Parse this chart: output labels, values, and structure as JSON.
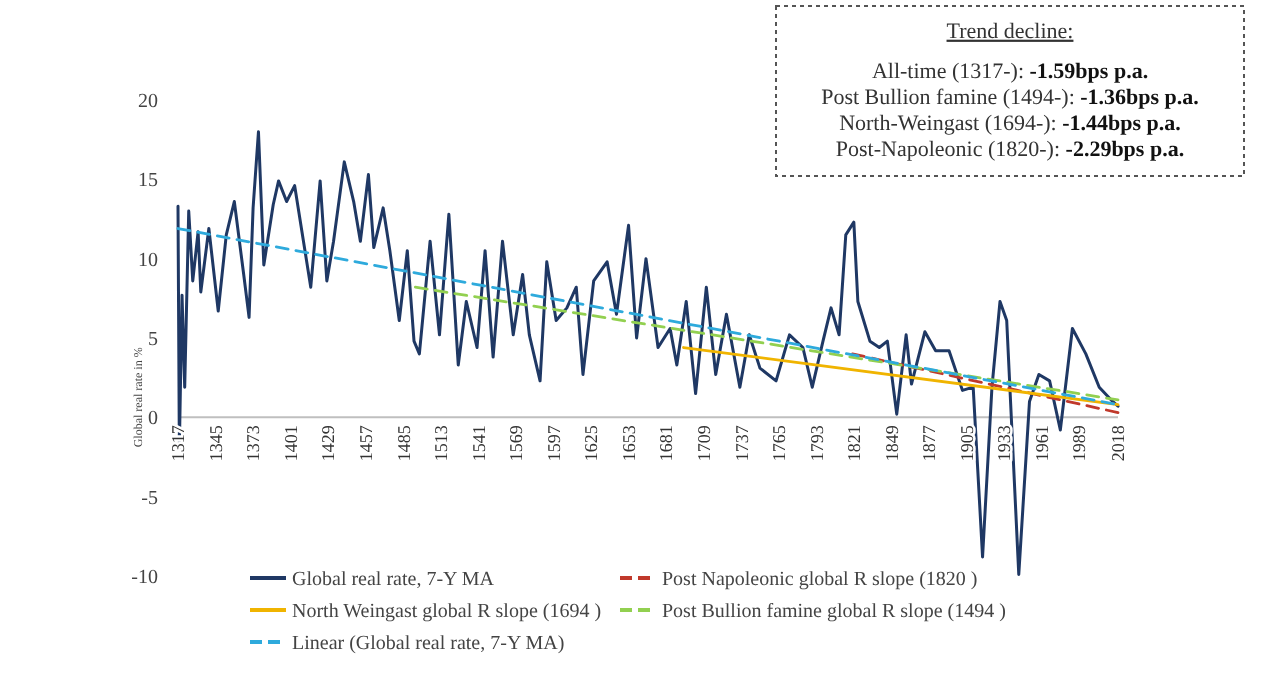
{
  "chart_data": {
    "type": "line",
    "ylabel": "Global real rate in %",
    "xlim": [
      1317,
      2018
    ],
    "xticks": [
      1317,
      1345,
      1373,
      1401,
      1429,
      1457,
      1485,
      1513,
      1541,
      1569,
      1597,
      1625,
      1653,
      1681,
      1709,
      1737,
      1765,
      1793,
      1821,
      1849,
      1877,
      1905,
      1933,
      1961,
      1989,
      2018
    ],
    "ylim": [
      -10,
      20
    ],
    "yticks": [
      -10,
      -5,
      0,
      5,
      10,
      15,
      20
    ],
    "grid": false,
    "legend": "bottom",
    "marker": "none",
    "annotations": [
      "Trend decline:",
      "All-time (1317-): -1.59bps p.a.",
      "Post Bullion famine (1494-): -1.36bps p.a.",
      "North-Weingast (1694-): -1.44bps p.a.",
      "Post-Napoleonic (1820-): -2.29bps p.a."
    ],
    "series": [
      {
        "name": "Global real rate, 7-Y MA",
        "color": "#1f3864",
        "line_style": "solid",
        "x": [
          1317,
          1318,
          1320,
          1322,
          1325,
          1328,
          1332,
          1334,
          1340,
          1347,
          1353,
          1359,
          1366,
          1370,
          1373,
          1377,
          1381,
          1388,
          1392,
          1398,
          1404,
          1416,
          1423,
          1428,
          1433,
          1441,
          1448,
          1453,
          1459,
          1463,
          1470,
          1475,
          1482,
          1488,
          1493,
          1497,
          1505,
          1512,
          1519,
          1526,
          1532,
          1540,
          1546,
          1552,
          1559,
          1567,
          1574,
          1579,
          1587,
          1592,
          1599,
          1607,
          1614,
          1619,
          1627,
          1637,
          1644,
          1653,
          1659,
          1666,
          1675,
          1684,
          1689,
          1696,
          1703,
          1711,
          1718,
          1726,
          1736,
          1743,
          1751,
          1763,
          1773,
          1783,
          1790,
          1798,
          1804,
          1810,
          1815,
          1821,
          1824,
          1833,
          1840,
          1846,
          1853,
          1860,
          1864,
          1874,
          1882,
          1892,
          1902,
          1910,
          1917,
          1924,
          1930,
          1935,
          1944,
          1952,
          1959,
          1967,
          1975,
          1984,
          1994,
          2004,
          2014,
          2018
        ],
        "values": [
          13.3,
          -2,
          7.7,
          1.9,
          13,
          8.6,
          11.7,
          7.9,
          11.9,
          6.7,
          11.5,
          13.6,
          9,
          6.3,
          13.2,
          18,
          9.6,
          13.4,
          14.9,
          13.6,
          14.6,
          8.2,
          14.9,
          8.6,
          11.1,
          16.1,
          13.6,
          11.1,
          15.3,
          10.7,
          13.2,
          10.5,
          6.1,
          10.5,
          4.8,
          4,
          11.1,
          5.2,
          12.8,
          3.3,
          7.3,
          4.4,
          10.5,
          3.8,
          11.1,
          5.2,
          9,
          5.2,
          2.3,
          9.8,
          6.1,
          6.9,
          8.2,
          2.7,
          8.6,
          9.8,
          6.5,
          12.1,
          5,
          10,
          4.4,
          5.6,
          3.3,
          7.3,
          1.5,
          8.2,
          2.7,
          6.5,
          1.9,
          5.2,
          3.1,
          2.3,
          5.2,
          4.4,
          1.9,
          4.8,
          6.9,
          5.2,
          11.5,
          12.3,
          7.3,
          4.8,
          4.4,
          4.8,
          0.2,
          5.2,
          2.1,
          5.4,
          4.2,
          4.2,
          1.7,
          1.9,
          -8.8,
          1.9,
          7.3,
          6.1,
          -9.9,
          1,
          2.7,
          2.3,
          -0.8,
          5.6,
          4,
          1.9,
          1,
          0.7
        ]
      },
      {
        "name": "Post Napoleonic global R slope (1820 )",
        "color": "#c0392b",
        "line_style": "dashed",
        "x": [
          1820,
          2018
        ],
        "values": [
          4,
          0.3
        ]
      },
      {
        "name": "North Weingast global R slope (1694 )",
        "color": "#f0b400",
        "line_style": "solid",
        "x": [
          1694,
          2018
        ],
        "values": [
          4.4,
          0.8
        ]
      },
      {
        "name": "Post Bullion famine global R slope (1494 )",
        "color": "#92d050",
        "line_style": "dashed",
        "x": [
          1494,
          2018
        ],
        "values": [
          8.2,
          1.1
        ]
      },
      {
        "name": "Linear (Global real rate, 7-Y MA)",
        "color": "#2eaadc",
        "line_style": "dashed",
        "x": [
          1317,
          2018
        ],
        "values": [
          11.9,
          0.8
        ]
      }
    ]
  }
}
